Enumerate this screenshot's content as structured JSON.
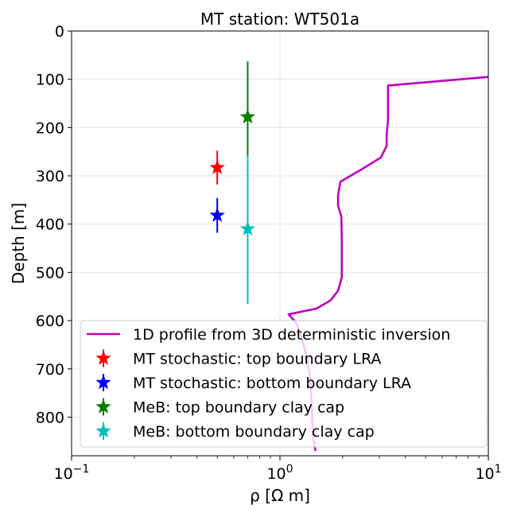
{
  "chart_data": {
    "type": "line",
    "title": "MT station: WT501a",
    "xlabel": "ρ [Ω m]",
    "ylabel": "Depth [m]",
    "x_scale": "log",
    "xlim": [
      0.1,
      10
    ],
    "ylim": [
      880,
      0
    ],
    "y_inverted": true,
    "grid": true,
    "legend_location": "bottom-right",
    "x_ticks": [
      {
        "value": 0.1,
        "base": "10",
        "exp": "−1"
      },
      {
        "value": 1,
        "base": "10",
        "exp": "0"
      },
      {
        "value": 10,
        "base": "10",
        "exp": "1"
      }
    ],
    "y_ticks": [
      0,
      100,
      200,
      300,
      400,
      500,
      600,
      700,
      800
    ],
    "series": [
      {
        "name": "1D profile from 3D deterministic inversion",
        "kind": "line",
        "color": "#bf00bf",
        "points": [
          [
            10.0,
            95
          ],
          [
            3.3,
            113
          ],
          [
            3.3,
            150
          ],
          [
            3.3,
            185
          ],
          [
            3.25,
            215
          ],
          [
            3.25,
            238
          ],
          [
            3.05,
            262
          ],
          [
            2.5,
            285
          ],
          [
            1.95,
            312
          ],
          [
            1.9,
            340
          ],
          [
            1.9,
            362
          ],
          [
            1.97,
            385
          ],
          [
            1.98,
            430
          ],
          [
            1.98,
            480
          ],
          [
            1.98,
            510
          ],
          [
            1.9,
            538
          ],
          [
            1.75,
            558
          ],
          [
            1.5,
            575
          ],
          [
            1.1,
            587
          ],
          [
            1.2,
            605
          ],
          [
            1.28,
            640
          ],
          [
            1.35,
            680
          ],
          [
            1.4,
            720
          ],
          [
            1.42,
            780
          ],
          [
            1.44,
            840
          ],
          [
            1.48,
            870
          ]
        ]
      },
      {
        "name": "MT stochastic: top boundary LRA",
        "kind": "errorbar",
        "color": "#ff0000",
        "x": 0.5,
        "y": 283,
        "y_low": 248,
        "y_high": 318
      },
      {
        "name": "MT stochastic: bottom boundary LRA",
        "kind": "errorbar",
        "color": "#0000ff",
        "x": 0.5,
        "y": 382,
        "y_low": 346,
        "y_high": 418
      },
      {
        "name": "MeB: top boundary clay cap",
        "kind": "errorbar",
        "color": "#008000",
        "x": 0.7,
        "y": 178,
        "y_low": 63,
        "y_high": 258
      },
      {
        "name": "MeB: bottom boundary clay cap",
        "kind": "errorbar",
        "color": "#00bfbf",
        "x": 0.7,
        "y": 410,
        "y_low": 258,
        "y_high": 565
      }
    ]
  }
}
